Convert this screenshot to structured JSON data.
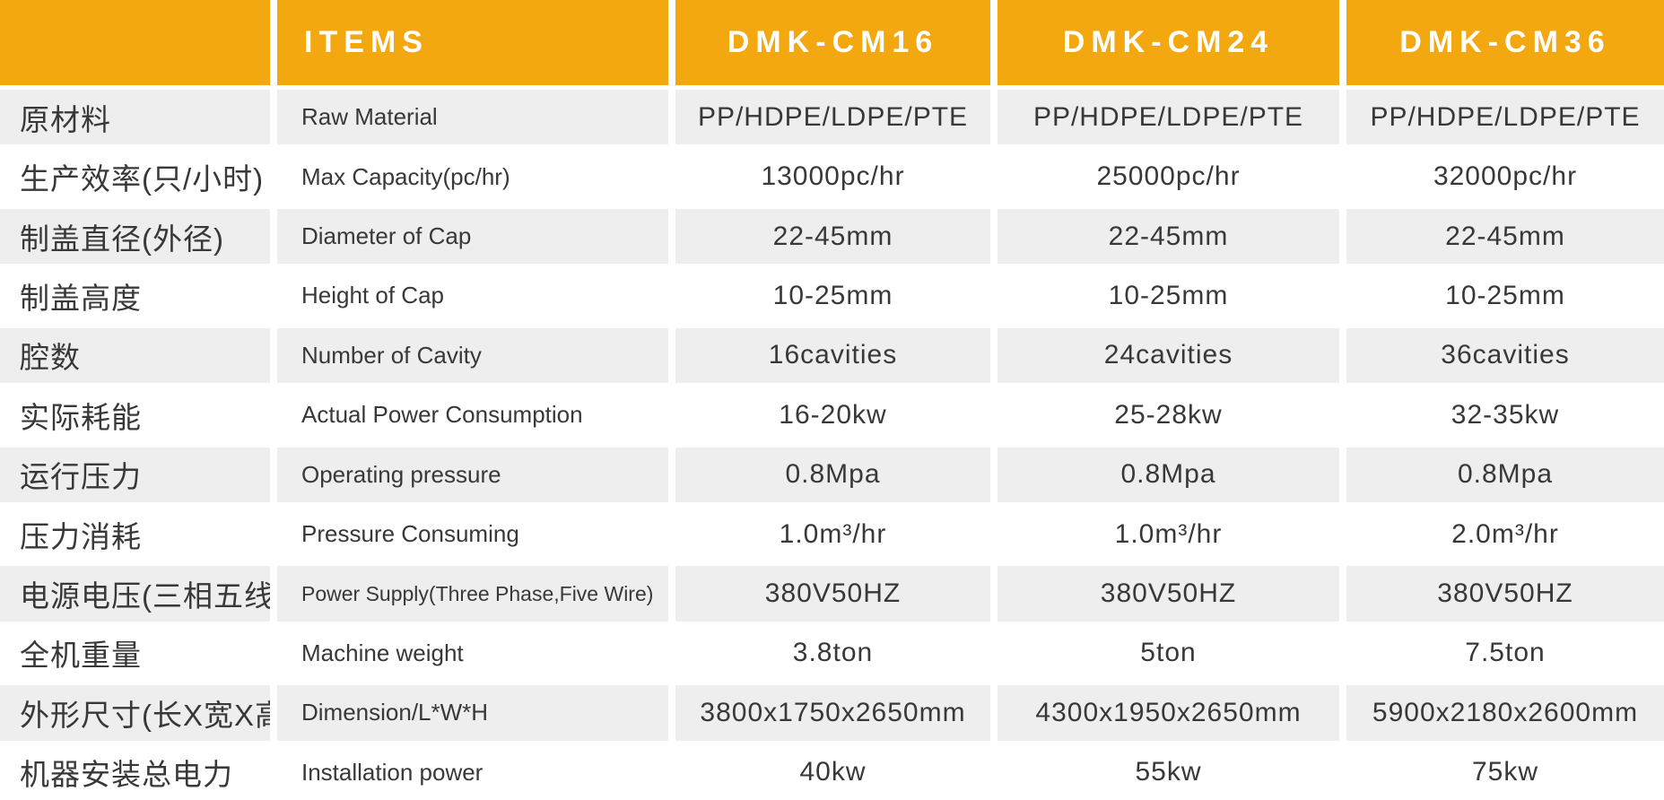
{
  "colors": {
    "header_bg": "#F2A80E",
    "header_text": "#FFFFFF",
    "alt_row_bg": "#EEEEEE",
    "row_bg": "#FFFFFF",
    "text": "#383838"
  },
  "header": {
    "items_label": "ITEMS",
    "models": [
      "DMK-CM16",
      "DMK-CM24",
      "DMK-CM36"
    ]
  },
  "rows": [
    {
      "cn": "原材料",
      "en": "Raw Material",
      "values": [
        "PP/HDPE/LDPE/PTE",
        "PP/HDPE/LDPE/PTE",
        "PP/HDPE/LDPE/PTE"
      ]
    },
    {
      "cn": "生产效率(只/小时)",
      "en": "Max Capacity(pc/hr)",
      "values": [
        "13000pc/hr",
        "25000pc/hr",
        "32000pc/hr"
      ]
    },
    {
      "cn": "制盖直径(外径)",
      "en": "Diameter of Cap",
      "values": [
        "22-45mm",
        "22-45mm",
        "22-45mm"
      ]
    },
    {
      "cn": "制盖高度",
      "en": "Height of Cap",
      "values": [
        "10-25mm",
        "10-25mm",
        "10-25mm"
      ]
    },
    {
      "cn": "腔数",
      "en": "Number of Cavity",
      "values": [
        "16cavities",
        "24cavities",
        "36cavities"
      ]
    },
    {
      "cn": "实际耗能",
      "en": "Actual Power Consumption",
      "values": [
        "16-20kw",
        "25-28kw",
        "32-35kw"
      ]
    },
    {
      "cn": "运行压力",
      "en": "Operating pressure",
      "values": [
        "0.8Mpa",
        "0.8Mpa",
        "0.8Mpa"
      ]
    },
    {
      "cn": "压力消耗",
      "en": "Pressure Consuming",
      "values": [
        "1.0m³/hr",
        "1.0m³/hr",
        "2.0m³/hr"
      ]
    },
    {
      "cn": "电源电压(三相五线)",
      "en": "Power Supply(Three Phase,Five Wire)",
      "values": [
        "380V50HZ",
        "380V50HZ",
        "380V50HZ"
      ]
    },
    {
      "cn": "全机重量",
      "en": "Machine weight",
      "values": [
        "3.8ton",
        "5ton",
        "7.5ton"
      ]
    },
    {
      "cn": "外形尺寸(长X宽X高)",
      "en": "Dimension/L*W*H",
      "values": [
        "3800x1750x2650mm",
        "4300x1950x2650mm",
        "5900x2180x2600mm"
      ]
    },
    {
      "cn": "机器安装总电力",
      "en": "Installation power",
      "values": [
        "40kw",
        "55kw",
        "75kw"
      ]
    }
  ]
}
